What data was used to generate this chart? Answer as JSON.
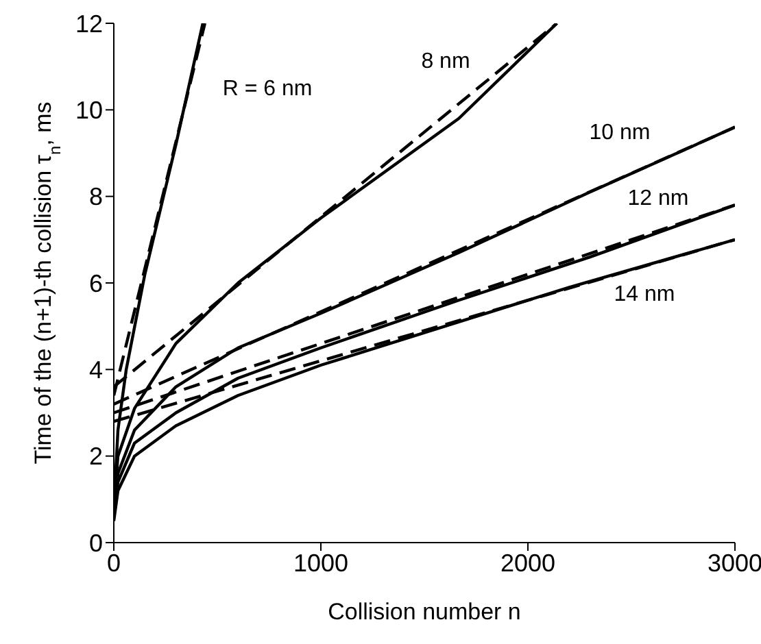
{
  "chart_data": {
    "type": "line",
    "xlabel": "Collision number n",
    "ylabel": "Time of the (n+1)-th collision τ$_{n}$, ms",
    "xlim": [
      0,
      3000
    ],
    "ylim": [
      0,
      12
    ],
    "xticks": [
      0,
      1000,
      2000,
      3000
    ],
    "yticks": [
      0,
      2,
      4,
      6,
      8,
      10,
      12
    ],
    "marker": "none",
    "series": [
      {
        "color": "#000000",
        "x": [
          0,
          20,
          60,
          150,
          300,
          430
        ],
        "values": [
          0.8,
          2.6,
          4.0,
          6.2,
          9.2,
          12
        ]
      },
      {
        "color": "#000000",
        "x": [
          0,
          20,
          100,
          300,
          600,
          1000,
          1666,
          2140
        ],
        "values": [
          0.8,
          2.0,
          3.1,
          4.6,
          6.0,
          7.5,
          9.8,
          12
        ]
      },
      {
        "color": "#000000",
        "x": [
          0,
          20,
          100,
          300,
          600,
          1000,
          1666,
          2300,
          3000
        ],
        "values": [
          0.7,
          1.6,
          2.6,
          3.6,
          4.5,
          5.3,
          6.7,
          8.1,
          9.6
        ]
      },
      {
        "color": "#000000",
        "x": [
          0,
          20,
          100,
          300,
          600,
          1000,
          1666,
          2300,
          3000
        ],
        "values": [
          0.6,
          1.4,
          2.3,
          3.0,
          3.8,
          4.5,
          5.6,
          6.6,
          7.8
        ]
      },
      {
        "color": "#000000",
        "x": [
          0,
          20,
          100,
          300,
          600,
          1000,
          1666,
          2200,
          3000
        ],
        "values": [
          0.5,
          1.2,
          2.0,
          2.7,
          3.4,
          4.1,
          5.1,
          5.9,
          7.0
        ]
      },
      {
        "color": "#000000",
        "line_style": "dashed",
        "x": [
          0,
          440
        ],
        "values": [
          3.4,
          12
        ]
      },
      {
        "color": "#000000",
        "line_style": "dashed",
        "x": [
          0,
          2140
        ],
        "values": [
          3.6,
          12
        ]
      },
      {
        "color": "#000000",
        "line_style": "dashed",
        "x": [
          0,
          3000
        ],
        "values": [
          3.2,
          9.6
        ]
      },
      {
        "color": "#000000",
        "line_style": "dashed",
        "x": [
          0,
          3000
        ],
        "values": [
          3.0,
          7.8
        ]
      },
      {
        "color": "#000000",
        "line_style": "dashed",
        "x": [
          0,
          3000
        ],
        "values": [
          2.8,
          7.0
        ]
      }
    ],
    "annotations": [
      "R = 6 nm",
      "8 nm",
      "10 nm",
      "12 nm",
      "14 nm"
    ]
  }
}
